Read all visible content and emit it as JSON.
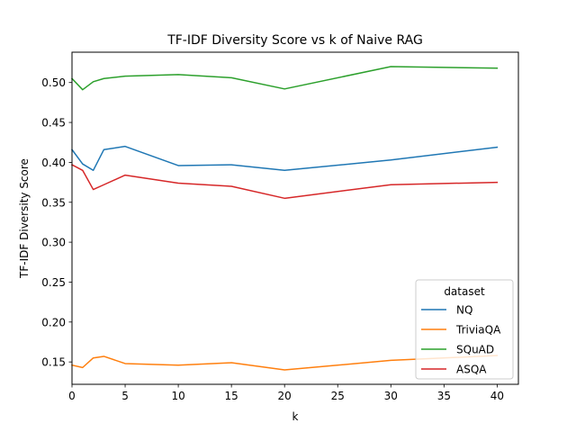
{
  "chart_data": {
    "type": "line",
    "title": "TF-IDF Diversity Score vs k of Naive RAG",
    "xlabel": "k",
    "ylabel": "TF-IDF Diversity Score",
    "xlim": [
      0,
      42
    ],
    "ylim": [
      0.122,
      0.538
    ],
    "xticks": [
      0,
      5,
      10,
      15,
      20,
      25,
      30,
      35,
      40
    ],
    "xtick_labels": [
      "0",
      "5",
      "10",
      "15",
      "20",
      "25",
      "30",
      "35",
      "40"
    ],
    "yticks": [
      0.15,
      0.2,
      0.25,
      0.3,
      0.35,
      0.4,
      0.45,
      0.5
    ],
    "ytick_labels": [
      "0.15",
      "0.20",
      "0.25",
      "0.30",
      "0.35",
      "0.40",
      "0.45",
      "0.50"
    ],
    "grid": false,
    "legend": {
      "title": "dataset",
      "placement": "lower-right"
    },
    "x": [
      0,
      1,
      2,
      3,
      5,
      10,
      15,
      20,
      30,
      40
    ],
    "series": [
      {
        "name": "NQ",
        "color": "#1f77b4",
        "values": [
          0.416,
          0.398,
          0.39,
          0.416,
          0.42,
          0.396,
          0.397,
          0.39,
          0.403,
          0.419
        ]
      },
      {
        "name": "TriviaQA",
        "color": "#ff7f0e",
        "values": [
          0.146,
          0.143,
          0.155,
          0.157,
          0.148,
          0.146,
          0.149,
          0.14,
          0.152,
          0.158
        ]
      },
      {
        "name": "SQuAD",
        "color": "#2ca02c",
        "values": [
          0.505,
          0.491,
          0.501,
          0.505,
          0.508,
          0.51,
          0.506,
          0.492,
          0.52,
          0.518
        ]
      },
      {
        "name": "ASQA",
        "color": "#d62728",
        "values": [
          0.397,
          0.39,
          0.366,
          0.372,
          0.384,
          0.374,
          0.37,
          0.355,
          0.372,
          0.375
        ]
      }
    ]
  }
}
